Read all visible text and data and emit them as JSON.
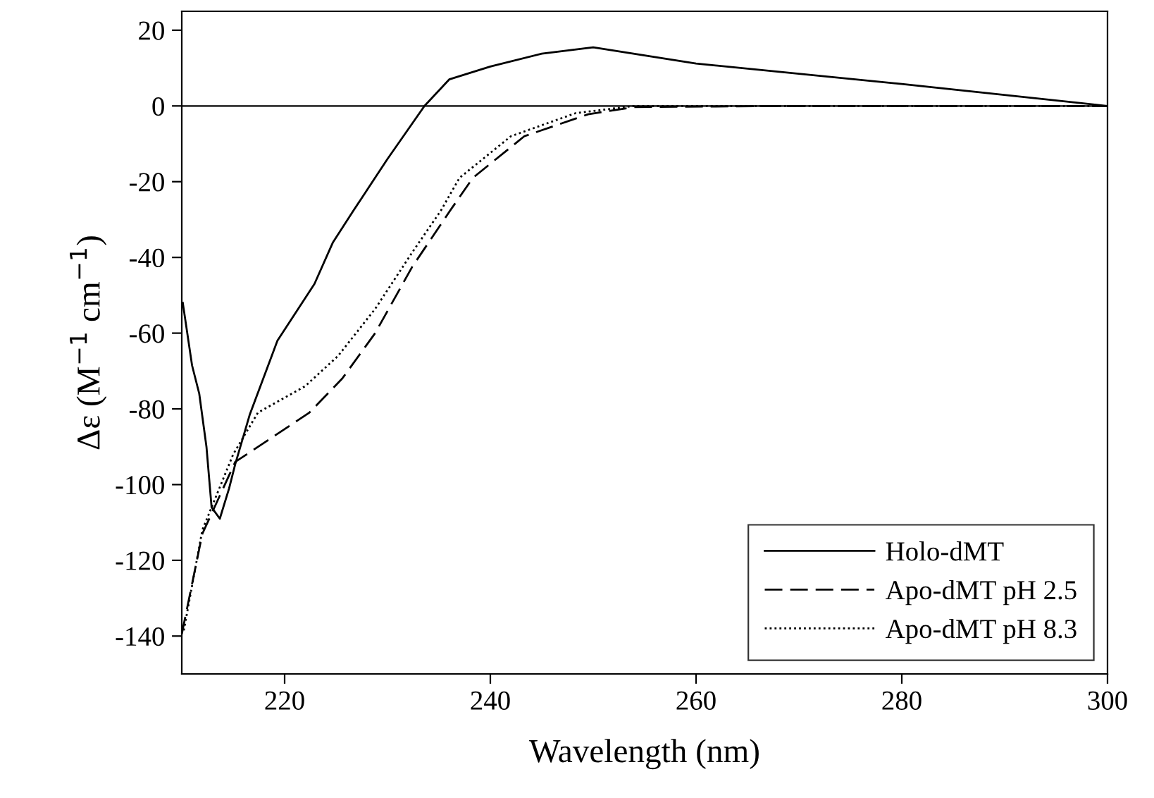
{
  "chart_data": {
    "type": "line",
    "xlabel": "Wavelength (nm)",
    "ylabel": "Δε (M$^{−1}$ cm$^{−1}$)",
    "xlim": [
      210,
      300
    ],
    "xticks": [
      220,
      240,
      260,
      280,
      300
    ],
    "ylim": [
      -150,
      25
    ],
    "yticks": [
      -140,
      -120,
      -100,
      -80,
      -60,
      -40,
      -20,
      0,
      20
    ],
    "grid": false,
    "legend": "bottom right",
    "marker": "none",
    "ref_lines": [
      {
        "axis": "y",
        "value": 0,
        "color": "#000000",
        "line_style": "solid"
      }
    ],
    "series": [
      {
        "name": "Holo-dMT",
        "color": "#000000",
        "line_style": "solid",
        "x": [
          210.1,
          211,
          211.7,
          212.4,
          212.9,
          213.7,
          214.6,
          215.2,
          216.6,
          219.3,
          222.9,
          224.7,
          226.7,
          230,
          233.6,
          236,
          240,
          245,
          250,
          260,
          280,
          300
        ],
        "values": [
          -52,
          -68.5,
          -76,
          -90,
          -106,
          -109,
          -101,
          -94.6,
          -81.6,
          -62,
          -47,
          -36,
          -27.6,
          -14,
          0,
          7,
          10.4,
          13.8,
          15.5,
          11.2,
          5.8,
          0
        ]
      },
      {
        "name": "Apo-dMT pH 2.5",
        "color": "#000000",
        "line_style": "dashed",
        "x": [
          210,
          212,
          215.2,
          216.6,
          222.4,
          225.6,
          228.8,
          232.4,
          236.1,
          238.3,
          243.3,
          249.5,
          254,
          270,
          300
        ],
        "values": [
          -139.5,
          -113,
          -94,
          -91.5,
          -81,
          -72,
          -60,
          -42.5,
          -27.6,
          -19,
          -8,
          -2.2,
          -0.3,
          0,
          0
        ]
      },
      {
        "name": "Apo-dMT pH 8.3",
        "color": "#000000",
        "line_style": "dotted",
        "x": [
          210.2,
          212,
          215,
          217.4,
          222,
          225.2,
          228.8,
          232.4,
          235.2,
          237,
          242,
          248.3,
          254,
          270,
          299.5
        ],
        "values": [
          -138.5,
          -112,
          -92,
          -81,
          -74,
          -66,
          -53.6,
          -38.7,
          -27.6,
          -19,
          -8,
          -1.9,
          0,
          0,
          0
        ]
      }
    ]
  }
}
